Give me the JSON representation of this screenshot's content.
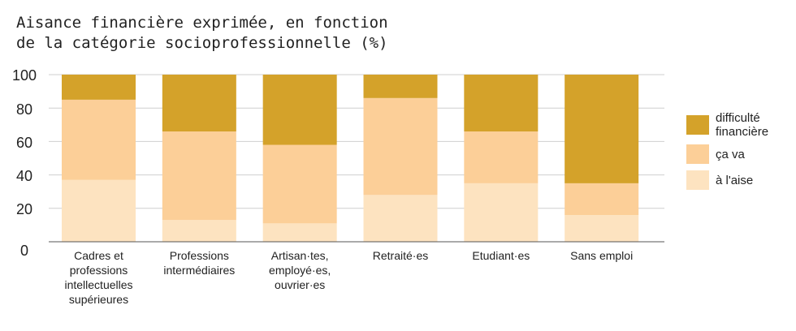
{
  "chart_data": {
    "type": "bar",
    "stacked": true,
    "title_lines": [
      "Aisance financière exprimée, en fonction",
      "de la catégorie socioprofessionnelle (%)"
    ],
    "ylim": [
      0,
      100
    ],
    "yticks": [
      "100",
      "80",
      "60",
      "40",
      "20",
      "0"
    ],
    "grid": true,
    "legend_position": "right",
    "categories": [
      [
        "Cadres et",
        "professions",
        "intellectuelles",
        "supérieures"
      ],
      [
        "Professions",
        "intermédiaires"
      ],
      [
        "Artisan·tes,",
        "employé·es,",
        "ouvrier·es"
      ],
      [
        "Retraité·es"
      ],
      [
        "Etudiant·es"
      ],
      [
        "Sans emploi"
      ]
    ],
    "series": [
      {
        "name": "à l'aise",
        "color": "#fde3c0",
        "values": [
          37,
          13,
          11,
          28,
          35,
          16
        ]
      },
      {
        "name": "ça va",
        "color": "#fccf98",
        "values": [
          48,
          53,
          47,
          58,
          31,
          19
        ]
      },
      {
        "name": "difficulté financière",
        "color": "#d4a22a",
        "values": [
          15,
          34,
          42,
          14,
          34,
          65
        ]
      }
    ],
    "legend": [
      {
        "lines": [
          "difficulté",
          "financière"
        ],
        "color": "#d4a22a"
      },
      {
        "lines": [
          "ça va"
        ],
        "color": "#fccf98"
      },
      {
        "lines": [
          "à l'aise"
        ],
        "color": "#fde3c0"
      }
    ]
  }
}
